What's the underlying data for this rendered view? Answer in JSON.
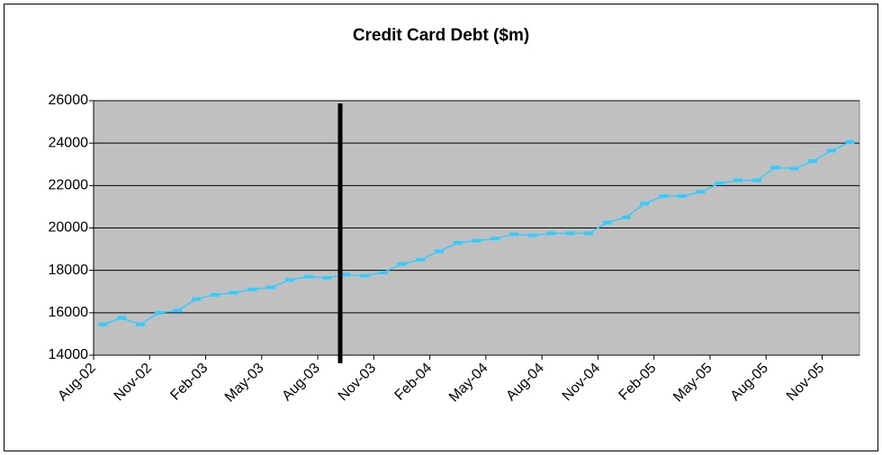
{
  "chart_data": {
    "type": "line",
    "title": "Credit Card Debt ($m)",
    "categories": [
      "Aug-02",
      null,
      null,
      "Nov-02",
      null,
      null,
      "Feb-03",
      null,
      null,
      "May-03",
      null,
      null,
      "Aug-03",
      null,
      null,
      "Nov-03",
      null,
      null,
      "Feb-04",
      null,
      null,
      "May-04",
      null,
      null,
      "Aug-04",
      null,
      null,
      "Nov-04",
      null,
      null,
      "Feb-05",
      null,
      null,
      "May-05",
      null,
      null,
      "Aug-05",
      null,
      null,
      "Nov-05",
      null
    ],
    "series": [
      {
        "name": "Credit Card Debt",
        "color": "#33ccff",
        "values": [
          15450,
          15750,
          15450,
          16000,
          16100,
          16650,
          16850,
          16950,
          17100,
          17200,
          17550,
          17700,
          17650,
          17800,
          17750,
          17900,
          18300,
          18500,
          18900,
          19300,
          19400,
          19500,
          19700,
          19650,
          19750,
          19750,
          19750,
          20250,
          20500,
          21150,
          21500,
          21500,
          21700,
          22100,
          22250,
          22250,
          22850,
          22800,
          23150,
          23650,
          24050
        ]
      }
    ],
    "ylim": [
      14000,
      26000
    ],
    "yticks": [
      14000,
      16000,
      18000,
      20000,
      22000,
      24000,
      26000
    ],
    "grid": true
  }
}
